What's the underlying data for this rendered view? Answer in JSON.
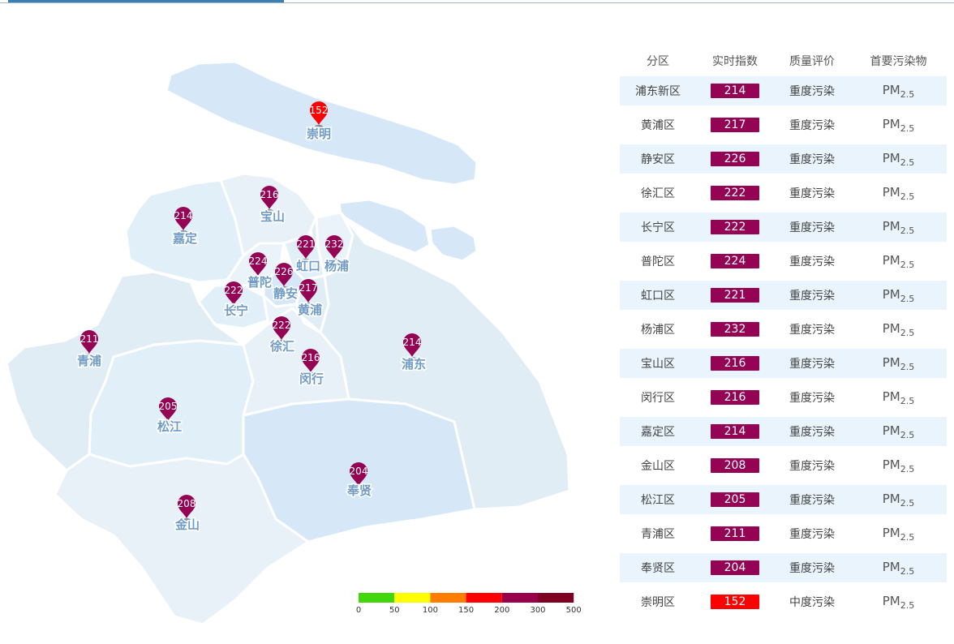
{
  "colors": {
    "severe": "#950355",
    "moderate": "#ff0000",
    "label": "#6f9bc4",
    "row_alt": "#e9f4fc"
  },
  "table": {
    "headers": [
      "分区",
      "实时指数",
      "质量评价",
      "首要污染物"
    ],
    "rows": [
      {
        "district": "浦东新区",
        "aqi": "214",
        "quality": "重度污染",
        "pollutant": "PM",
        "sub": "2.5",
        "level": "severe"
      },
      {
        "district": "黄浦区",
        "aqi": "217",
        "quality": "重度污染",
        "pollutant": "PM",
        "sub": "2.5",
        "level": "severe"
      },
      {
        "district": "静安区",
        "aqi": "226",
        "quality": "重度污染",
        "pollutant": "PM",
        "sub": "2.5",
        "level": "severe"
      },
      {
        "district": "徐汇区",
        "aqi": "222",
        "quality": "重度污染",
        "pollutant": "PM",
        "sub": "2.5",
        "level": "severe"
      },
      {
        "district": "长宁区",
        "aqi": "222",
        "quality": "重度污染",
        "pollutant": "PM",
        "sub": "2.5",
        "level": "severe"
      },
      {
        "district": "普陀区",
        "aqi": "224",
        "quality": "重度污染",
        "pollutant": "PM",
        "sub": "2.5",
        "level": "severe"
      },
      {
        "district": "虹口区",
        "aqi": "221",
        "quality": "重度污染",
        "pollutant": "PM",
        "sub": "2.5",
        "level": "severe"
      },
      {
        "district": "杨浦区",
        "aqi": "232",
        "quality": "重度污染",
        "pollutant": "PM",
        "sub": "2.5",
        "level": "severe"
      },
      {
        "district": "宝山区",
        "aqi": "216",
        "quality": "重度污染",
        "pollutant": "PM",
        "sub": "2.5",
        "level": "severe"
      },
      {
        "district": "闵行区",
        "aqi": "216",
        "quality": "重度污染",
        "pollutant": "PM",
        "sub": "2.5",
        "level": "severe"
      },
      {
        "district": "嘉定区",
        "aqi": "214",
        "quality": "重度污染",
        "pollutant": "PM",
        "sub": "2.5",
        "level": "severe"
      },
      {
        "district": "金山区",
        "aqi": "208",
        "quality": "重度污染",
        "pollutant": "PM",
        "sub": "2.5",
        "level": "severe"
      },
      {
        "district": "松江区",
        "aqi": "205",
        "quality": "重度污染",
        "pollutant": "PM",
        "sub": "2.5",
        "level": "severe"
      },
      {
        "district": "青浦区",
        "aqi": "211",
        "quality": "重度污染",
        "pollutant": "PM",
        "sub": "2.5",
        "level": "severe"
      },
      {
        "district": "奉贤区",
        "aqi": "204",
        "quality": "重度污染",
        "pollutant": "PM",
        "sub": "2.5",
        "level": "severe"
      },
      {
        "district": "崇明区",
        "aqi": "152",
        "quality": "中度污染",
        "pollutant": "PM",
        "sub": "2.5",
        "level": "moderate"
      }
    ]
  },
  "map": {
    "markers": [
      {
        "id": "chongming",
        "name": "崇明",
        "value": "152",
        "level": "moderate"
      },
      {
        "id": "baoshan",
        "name": "宝山",
        "value": "216",
        "level": "severe"
      },
      {
        "id": "jiading",
        "name": "嘉定",
        "value": "214",
        "level": "severe"
      },
      {
        "id": "putuo",
        "name": "普陀",
        "value": "224",
        "level": "severe"
      },
      {
        "id": "hongkou",
        "name": "虹口",
        "value": "221",
        "level": "severe"
      },
      {
        "id": "yangpu",
        "name": "杨浦",
        "value": "232",
        "level": "severe"
      },
      {
        "id": "jingan",
        "name": "静安",
        "value": "226",
        "level": "severe"
      },
      {
        "id": "changning",
        "name": "长宁",
        "value": "222",
        "level": "severe"
      },
      {
        "id": "huangpu",
        "name": "黄浦",
        "value": "217",
        "level": "severe"
      },
      {
        "id": "xuhui",
        "name": "徐汇",
        "value": "222",
        "level": "severe"
      },
      {
        "id": "qingpu",
        "name": "青浦",
        "value": "211",
        "level": "severe"
      },
      {
        "id": "minhang",
        "name": "闵行",
        "value": "216",
        "level": "severe"
      },
      {
        "id": "pudong",
        "name": "浦东",
        "value": "214",
        "level": "severe"
      },
      {
        "id": "songjiang",
        "name": "松江",
        "value": "205",
        "level": "severe"
      },
      {
        "id": "fengxian",
        "name": "奉贤",
        "value": "204",
        "level": "severe"
      },
      {
        "id": "jinshan",
        "name": "金山",
        "value": "208",
        "level": "severe"
      }
    ],
    "legend": {
      "colors": [
        "#43d60c",
        "#ffff00",
        "#ff7e00",
        "#ff0000",
        "#99004c",
        "#7e0023"
      ],
      "ticks": [
        "0",
        "50",
        "100",
        "150",
        "200",
        "300",
        "500"
      ]
    }
  }
}
